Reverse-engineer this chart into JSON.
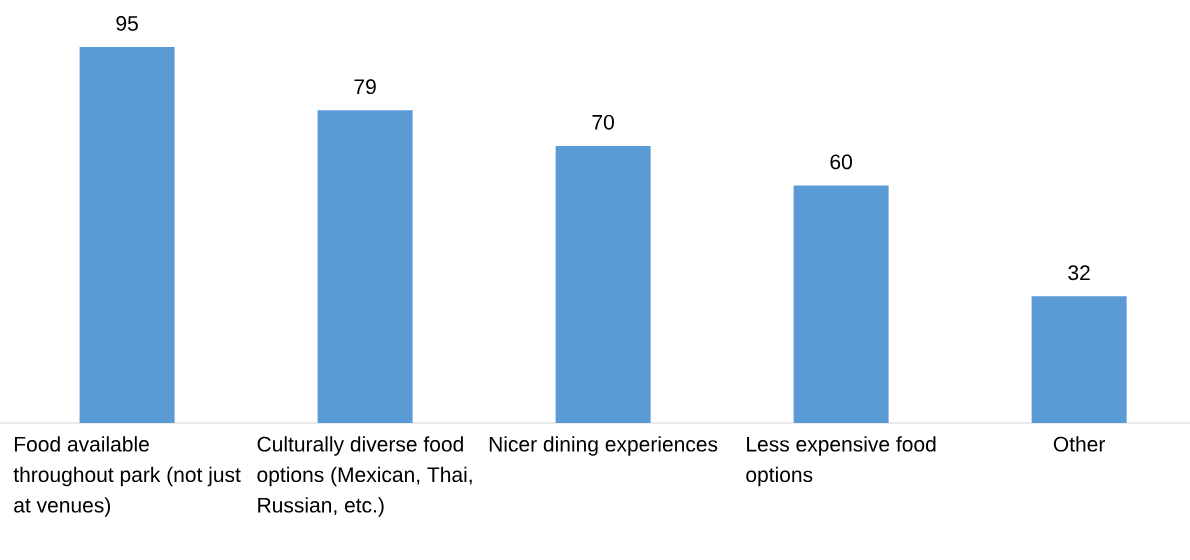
{
  "chart_data": {
    "type": "bar",
    "categories": [
      "Food available throughout park (not just at venues)",
      "Culturally diverse food options (Mexican, Thai, Russian, etc.)",
      "Nicer dining experiences",
      "Less expensive food options",
      "Other"
    ],
    "values": [
      95,
      79,
      70,
      60,
      32
    ],
    "color": "#5b9bd5",
    "data_labels": true
  }
}
